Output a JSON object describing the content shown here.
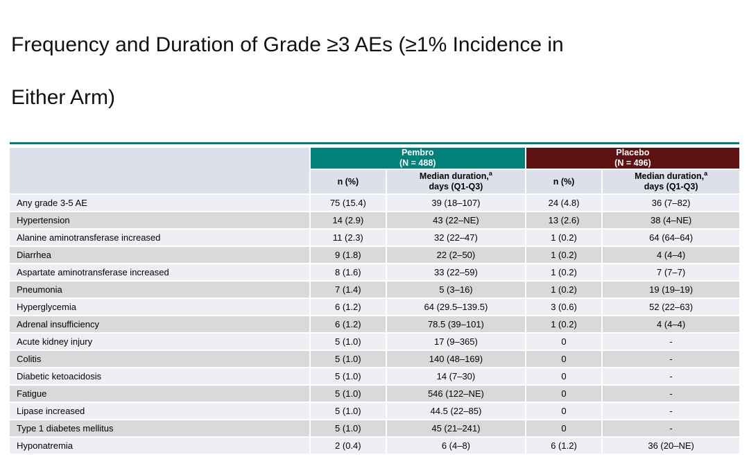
{
  "title_lines": [
    "Frequency and Duration of Grade ≥3 AEs (≥1% Incidence in",
    "Either Arm)"
  ],
  "colors": {
    "accent_teal": "#00817A",
    "placebo_maroon": "#5E1312",
    "subheader_bg": "#DCE0EA",
    "row_light": "#EEEFF4",
    "row_dark": "#D9D9D9"
  },
  "chart_data": {
    "type": "table",
    "title": "Frequency and Duration of Grade ≥3 AEs (≥1% Incidence in Either Arm)",
    "column_groups": [
      {
        "label": "Pembro",
        "n": "(N = 488)"
      },
      {
        "label": "Placebo",
        "n": "(N = 496)"
      }
    ],
    "subheaders": {
      "n_pct": "n (%)",
      "duration_line1": "Median duration,",
      "duration_sup": "a",
      "duration_line2": "days (Q1-Q3)"
    },
    "rows": [
      [
        "Any grade 3-5 AE",
        "75 (15.4)",
        "39 (18–107)",
        "24 (4.8)",
        "36 (7–82)"
      ],
      [
        "Hypertension",
        "14 (2.9)",
        "43 (22–NE)",
        "13 (2.6)",
        "38 (4–NE)"
      ],
      [
        "Alanine aminotransferase increased",
        "11 (2.3)",
        "32 (22–47)",
        "1 (0.2)",
        "64 (64–64)"
      ],
      [
        "Diarrhea",
        "9 (1.8)",
        "22 (2–50)",
        "1 (0.2)",
        "4 (4–4)"
      ],
      [
        "Aspartate aminotransferase increased",
        "8 (1.6)",
        "33 (22–59)",
        "1 (0.2)",
        "7 (7–7)"
      ],
      [
        "Pneumonia",
        "7 (1.4)",
        "5 (3–16)",
        "1 (0.2)",
        "19 (19–19)"
      ],
      [
        "Hyperglycemia",
        "6 (1.2)",
        "64 (29.5–139.5)",
        "3 (0.6)",
        "52 (22–63)"
      ],
      [
        "Adrenal insufficiency",
        "6 (1.2)",
        "78.5 (39–101)",
        "1 (0.2)",
        "4 (4–4)"
      ],
      [
        "Acute kidney injury",
        "5 (1.0)",
        "17 (9–365)",
        "0",
        "-"
      ],
      [
        "Colitis",
        "5 (1.0)",
        "140 (48–169)",
        "0",
        "-"
      ],
      [
        "Diabetic ketoacidosis",
        "5 (1.0)",
        "14 (7–30)",
        "0",
        "-"
      ],
      [
        "Fatigue",
        "5 (1.0)",
        "546 (122–NE)",
        "0",
        "-"
      ],
      [
        "Lipase increased",
        "5 (1.0)",
        "44.5 (22–85)",
        "0",
        "-"
      ],
      [
        "Type 1 diabetes mellitus",
        "5 (1.0)",
        "45 (21–241)",
        "0",
        "-"
      ],
      [
        "Hyponatremia",
        "2 (0.4)",
        "6 (4–8)",
        "6 (1.2)",
        "36 (20–NE)"
      ]
    ]
  }
}
